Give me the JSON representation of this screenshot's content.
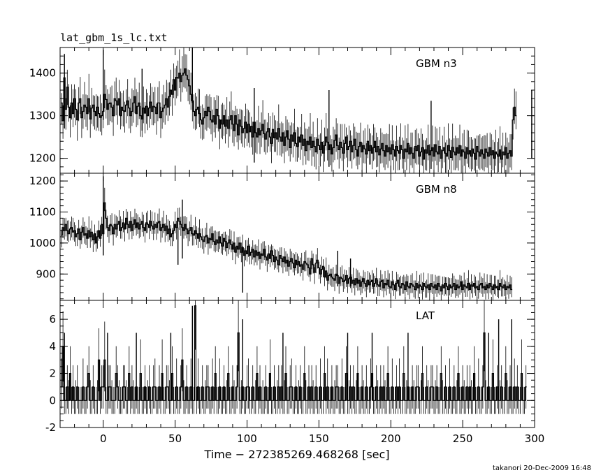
{
  "filename": "lat_gbm_1s_lc.txt",
  "footer": "takanori 20-Dec-2009 16:48",
  "chart_data": {
    "type": "line",
    "xlabel": "Time − 272385269.468268 [sec]",
    "xlim": [
      -30,
      300
    ],
    "x_ticks": [
      0,
      50,
      100,
      150,
      200,
      250,
      300
    ],
    "panels": [
      {
        "name": "GBM n3",
        "ylim": [
          1165,
          1460
        ],
        "y_ticks": [
          1200,
          1300,
          1400
        ],
        "series": {
          "x_start": -29,
          "x_step": 1,
          "values": [
            1330,
            1288,
            1389,
            1315,
            1367,
            1320,
            1295,
            1330,
            1305,
            1340,
            1315,
            1290,
            1330,
            1340,
            1295,
            1310,
            1325,
            1320,
            1305,
            1340,
            1292,
            1318,
            1325,
            1310,
            1300,
            1320,
            1305,
            1296,
            1300,
            1310,
            1350,
            1338,
            1315,
            1328,
            1330,
            1320,
            1300,
            1340,
            1335,
            1325,
            1340,
            1300,
            1320,
            1312,
            1310,
            1325,
            1335,
            1318,
            1300,
            1310,
            1330,
            1345,
            1305,
            1322,
            1330,
            1300,
            1292,
            1318,
            1306,
            1322,
            1300,
            1318,
            1332,
            1310,
            1322,
            1320,
            1305,
            1330,
            1330,
            1295,
            1310,
            1318,
            1325,
            1340,
            1320,
            1345,
            1360,
            1350,
            1385,
            1360,
            1390,
            1388,
            1400,
            1380,
            1395,
            1400,
            1410,
            1395,
            1385,
            1370,
            1350,
            1335,
            1310,
            1300,
            1315,
            1320,
            1305,
            1290,
            1280,
            1295,
            1310,
            1300,
            1320,
            1310,
            1290,
            1285,
            1300,
            1280,
            1315,
            1300,
            1270,
            1290,
            1280,
            1300,
            1275,
            1290,
            1270,
            1290,
            1300,
            1280,
            1265,
            1300,
            1280,
            1255,
            1290,
            1275,
            1260,
            1270,
            1285,
            1260,
            1280,
            1262,
            1275,
            1250,
            1285,
            1260,
            1250,
            1270,
            1255,
            1265,
            1280,
            1258,
            1245,
            1262,
            1270,
            1250,
            1235,
            1268,
            1248,
            1260,
            1245,
            1270,
            1250,
            1240,
            1260,
            1230,
            1250,
            1265,
            1245,
            1225,
            1255,
            1240,
            1260,
            1235,
            1228,
            1250,
            1238,
            1255,
            1230,
            1245,
            1218,
            1240,
            1232,
            1250,
            1225,
            1240,
            1228,
            1215,
            1245,
            1230,
            1220,
            1238,
            1212,
            1230,
            1250,
            1238,
            1220,
            1232,
            1210,
            1225,
            1242,
            1255,
            1230,
            1220,
            1238,
            1225,
            1212,
            1235,
            1250,
            1220,
            1228,
            1240,
            1215,
            1230,
            1245,
            1220,
            1205,
            1228,
            1238,
            1215,
            1230,
            1222,
            1210,
            1240,
            1218,
            1230,
            1212,
            1225,
            1240,
            1215,
            1228,
            1208,
            1222,
            1235,
            1218,
            1205,
            1230,
            1215,
            1225,
            1210,
            1232,
            1220,
            1205,
            1228,
            1218,
            1212,
            1230,
            1220,
            1200,
            1222,
            1215,
            1235,
            1210,
            1225,
            1212,
            1200,
            1228,
            1218,
            1230,
            1205,
            1215,
            1225,
            1198,
            1220,
            1212,
            1230,
            1208,
            1218,
            1225,
            1205,
            1232,
            1215,
            1210,
            1228,
            1200,
            1218,
            1225,
            1212,
            1205,
            1230,
            1218,
            1202,
            1226,
            1215,
            1208,
            1225,
            1212,
            1230,
            1205,
            1220,
            1215,
            1200,
            1225,
            1210,
            1218,
            1205,
            1222,
            1212,
            1198,
            1228,
            1215,
            1205,
            1220,
            1210,
            1200,
            1222,
            1214,
            1205,
            1225,
            1208,
            1218,
            1200,
            1215,
            1210,
            1205,
            1220,
            1198,
            1215,
            1208,
            1225,
            1200,
            1212,
            1218,
            1205,
            1290,
            1320,
            1300
          ]
        },
        "spikes": [
          {
            "x": -27,
            "hi": 1445,
            "lo": 1270
          },
          {
            "x": 0,
            "hi": 1455,
            "lo": 1290
          },
          {
            "x": 27,
            "hi": 1410,
            "lo": 1265
          },
          {
            "x": 62,
            "hi": 1460,
            "lo": 1330
          },
          {
            "x": 105,
            "hi": 1365,
            "lo": 1190
          },
          {
            "x": 157,
            "hi": 1360,
            "lo": 1180
          },
          {
            "x": 228,
            "hi": 1335,
            "lo": 1175
          },
          {
            "x": 298,
            "hi": 1360,
            "lo": 1200
          }
        ]
      },
      {
        "name": "GBM n8",
        "ylim": [
          815,
          1225
        ],
        "y_ticks": [
          900,
          1000,
          1100,
          1200
        ],
        "series": {
          "x_start": -29,
          "x_step": 1,
          "values": [
            1025,
            1050,
            1040,
            1060,
            1040,
            1030,
            1045,
            1050,
            1035,
            1040,
            1020,
            1030,
            1045,
            1010,
            1035,
            1050,
            1025,
            1030,
            1015,
            1040,
            1020,
            1035,
            1010,
            1030,
            1000,
            1020,
            1040,
            1015,
            1060,
            1030,
            1130,
            1080,
            1050,
            1040,
            1060,
            1055,
            1030,
            1060,
            1045,
            1060,
            1070,
            1040,
            1050,
            1065,
            1045,
            1080,
            1060,
            1050,
            1070,
            1040,
            1060,
            1075,
            1050,
            1065,
            1045,
            1060,
            1070,
            1050,
            1040,
            1065,
            1060,
            1050,
            1070,
            1055,
            1045,
            1060,
            1050,
            1065,
            1070,
            1040,
            1050,
            1060,
            1040,
            1055,
            1030,
            1045,
            1020,
            1030,
            1040,
            1060,
            1050,
            1080,
            1070,
            1060,
            1050,
            1040,
            1060,
            1045,
            1030,
            1040,
            1050,
            1030,
            1025,
            1040,
            1030,
            1015,
            1030,
            1020,
            1010,
            1005,
            1020,
            1025,
            1000,
            1015,
            1010,
            1030,
            1005,
            995,
            1010,
            1000,
            1020,
            1000,
            990,
            1015,
            1005,
            985,
            1000,
            1010,
            995,
            980,
            1000,
            970,
            990,
            980,
            1000,
            970,
            985,
            960,
            975,
            965,
            990,
            960,
            970,
            980,
            955,
            975,
            960,
            970,
            950,
            965,
            960,
            980,
            955,
            945,
            965,
            950,
            975,
            960,
            940,
            955,
            945,
            930,
            960,
            950,
            940,
            955,
            935,
            945,
            925,
            940,
            950,
            935,
            920,
            945,
            930,
            940,
            925,
            930,
            915,
            940,
            935,
            930,
            920,
            900,
            950,
            930,
            905,
            935,
            945,
            920,
            900,
            915,
            925,
            890,
            910,
            880,
            895,
            900,
            890,
            885,
            880,
            900,
            895,
            870,
            890,
            885,
            875,
            880,
            895,
            870,
            885,
            890,
            870,
            880,
            865,
            885,
            870,
            880,
            860,
            875,
            885,
            870,
            860,
            880,
            865,
            875,
            880,
            860,
            870,
            885,
            865,
            860,
            875,
            880,
            855,
            870,
            865,
            880,
            860,
            855,
            875,
            865,
            850,
            870,
            880,
            860,
            855,
            870,
            865,
            850,
            875,
            860,
            855,
            870,
            865,
            860,
            850,
            870,
            855,
            865,
            860,
            850,
            870,
            860,
            855,
            865,
            850,
            870,
            860,
            855,
            865,
            850,
            870,
            860,
            845,
            865,
            855,
            870,
            860,
            850,
            865,
            855,
            860,
            870,
            850,
            865,
            855,
            860,
            875,
            850,
            865,
            860,
            855,
            870,
            850,
            865,
            860,
            870,
            855,
            860,
            850,
            865,
            870,
            855,
            860,
            850,
            865,
            855,
            870,
            860,
            850,
            865,
            855,
            860,
            850,
            870,
            860,
            855,
            865,
            850,
            860,
            855,
            865,
            850
          ]
        },
        "spikes": [
          {
            "x": 0,
            "hi": 1215,
            "lo": 960
          },
          {
            "x": 55,
            "hi": 1140,
            "lo": 950
          },
          {
            "x": 52,
            "hi": 1050,
            "lo": 930
          },
          {
            "x": 97,
            "hi": 990,
            "lo": 840
          },
          {
            "x": 163,
            "hi": 975,
            "lo": 860
          },
          {
            "x": 172,
            "hi": 950,
            "lo": 860
          }
        ]
      },
      {
        "name": "LAT",
        "ylim": [
          -2,
          7.4
        ],
        "y_ticks": [
          -2,
          0,
          2,
          4,
          6
        ],
        "series": {
          "x_start": -29,
          "x_step": 1,
          "values": [
            1,
            4,
            0,
            0,
            1,
            0,
            2,
            0,
            1,
            0,
            0,
            1,
            0,
            0,
            0,
            1,
            0,
            0,
            1,
            2,
            0,
            0,
            1,
            0,
            0,
            0,
            3,
            0,
            1,
            1,
            3,
            0,
            0,
            1,
            1,
            0,
            0,
            0,
            2,
            1,
            0,
            0,
            0,
            1,
            1,
            0,
            0,
            2,
            0,
            1,
            0,
            0,
            1,
            0,
            0,
            2,
            0,
            0,
            1,
            0,
            0,
            1,
            0,
            0,
            1,
            1,
            0,
            0,
            1,
            0,
            2,
            0,
            0,
            1,
            1,
            0,
            0,
            2,
            0,
            0,
            1,
            0,
            0,
            1,
            3,
            0,
            0,
            1,
            0,
            0,
            1,
            0,
            0,
            7,
            0,
            1,
            0,
            0,
            1,
            0,
            0,
            1,
            1,
            0,
            0,
            1,
            0,
            2,
            0,
            0,
            1,
            0,
            0,
            1,
            0,
            0,
            2,
            0,
            0,
            1,
            0,
            0,
            1,
            5,
            0,
            0,
            1,
            0,
            0,
            1,
            1,
            0,
            0,
            1,
            0,
            0,
            2,
            0,
            1,
            0,
            0,
            0,
            1,
            0,
            0,
            2,
            0,
            0,
            1,
            0,
            0,
            1,
            0,
            1,
            0,
            0,
            2,
            0,
            0,
            1,
            1,
            0,
            0,
            1,
            0,
            0,
            1,
            0,
            0,
            2,
            0,
            0,
            1,
            0,
            1,
            0,
            0,
            1,
            0,
            0,
            1,
            0,
            0,
            2,
            0,
            1,
            0,
            0,
            1,
            0,
            0,
            1,
            1,
            0,
            0,
            1,
            0,
            0,
            2,
            0,
            0,
            1,
            0,
            1,
            0,
            0,
            2,
            0,
            0,
            1,
            0,
            0,
            1,
            0,
            0,
            1,
            2,
            0,
            0,
            1,
            0,
            0,
            1,
            0,
            1,
            0,
            0,
            2,
            0,
            0,
            1,
            0,
            0,
            1,
            0,
            1,
            0,
            0,
            2,
            0,
            0,
            1,
            0,
            0,
            1,
            0,
            0,
            1,
            1,
            0,
            0,
            2,
            0,
            0,
            1,
            0,
            0,
            1,
            1,
            0,
            0,
            1,
            0,
            0,
            2,
            0,
            0,
            1,
            0,
            0,
            1,
            0,
            0,
            1,
            0,
            0,
            2,
            0,
            0,
            1,
            0,
            0,
            1,
            0,
            1,
            0,
            0,
            2,
            0,
            0,
            1,
            0,
            0,
            1,
            5,
            0,
            0,
            1,
            0,
            0,
            2,
            0,
            0,
            1,
            0,
            0,
            1,
            0,
            0,
            2,
            0,
            0,
            1,
            0,
            0,
            1,
            0,
            1,
            0,
            0,
            2,
            0,
            0,
            1
          ]
        },
        "spikes": [
          {
            "x": -27,
            "hi": 5,
            "lo": 0
          },
          {
            "x": 3,
            "hi": 5,
            "lo": 0
          },
          {
            "x": 23,
            "hi": 5,
            "lo": 0
          },
          {
            "x": 47,
            "hi": 5,
            "lo": 0
          },
          {
            "x": 62,
            "hi": 7,
            "lo": 0
          },
          {
            "x": 97,
            "hi": 6,
            "lo": 0
          },
          {
            "x": 125,
            "hi": 5,
            "lo": 0
          },
          {
            "x": 170,
            "hi": 5,
            "lo": 0
          },
          {
            "x": 187,
            "hi": 5,
            "lo": 0
          },
          {
            "x": 212,
            "hi": 5,
            "lo": 0
          },
          {
            "x": 268,
            "hi": 5,
            "lo": 0
          },
          {
            "x": 275,
            "hi": 6,
            "lo": 0
          },
          {
            "x": 284,
            "hi": 6,
            "lo": 0
          }
        ]
      }
    ]
  }
}
